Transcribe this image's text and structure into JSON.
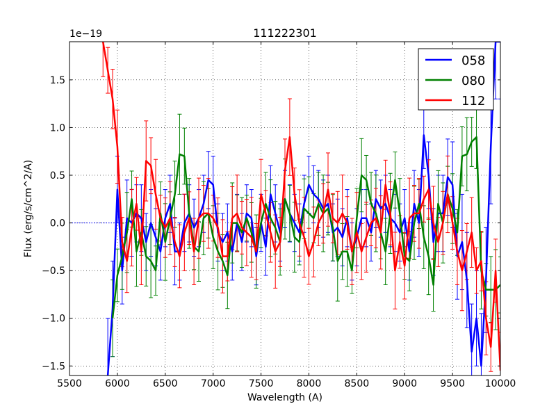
{
  "chart_data": {
    "type": "line",
    "title": "111222301",
    "xlabel": "Wavelength (A)",
    "ylabel": "Flux (erg/s/cm^2/A)",
    "y_offset_label": "1e−19",
    "xlim": [
      5500,
      10000
    ],
    "ylim": [
      -1.6,
      1.9
    ],
    "xticks": [
      5500,
      6000,
      6500,
      7000,
      7500,
      8000,
      8500,
      9000,
      9500,
      10000
    ],
    "xtick_labels": [
      "5500",
      "6000",
      "6500",
      "7000",
      "7500",
      "8000",
      "8500",
      "9000",
      "9500",
      "10000"
    ],
    "yticks": [
      -1.5,
      -1.0,
      -0.5,
      0.0,
      0.5,
      1.0,
      1.5
    ],
    "ytick_labels": [
      "−1.5",
      "−1.0",
      "−0.5",
      "0.0",
      "0.5",
      "1.0",
      "1.5"
    ],
    "grid": true,
    "legend_position": "top-right",
    "baseline": {
      "x_from": 5500,
      "x_to": 5980,
      "y": 0.0,
      "color": "#0000ff",
      "style": "dotted"
    },
    "series": [
      {
        "name": "058",
        "color": "#0000ff",
        "x": [
          5900,
          5950,
          6000,
          6050,
          6100,
          6150,
          6200,
          6250,
          6300,
          6350,
          6400,
          6450,
          6500,
          6550,
          6600,
          6650,
          6700,
          6750,
          6800,
          6850,
          6900,
          6950,
          7000,
          7050,
          7100,
          7150,
          7200,
          7250,
          7300,
          7350,
          7400,
          7450,
          7500,
          7550,
          7600,
          7650,
          7700,
          7750,
          7800,
          7850,
          7900,
          7950,
          8000,
          8050,
          8100,
          8150,
          8200,
          8250,
          8300,
          8350,
          8400,
          8450,
          8500,
          8550,
          8600,
          8650,
          8700,
          8750,
          8800,
          8850,
          8900,
          8950,
          9000,
          9050,
          9100,
          9150,
          9200,
          9250,
          9300,
          9350,
          9400,
          9450,
          9500,
          9550,
          9600,
          9650,
          9700,
          9750,
          9800,
          9850,
          9900,
          9950,
          10000
        ],
        "y": [
          -1.6,
          -0.9,
          0.35,
          -0.5,
          0.05,
          0.0,
          0.1,
          0.05,
          -0.2,
          0.0,
          -0.15,
          -0.3,
          0.05,
          0.2,
          -0.3,
          -0.3,
          0.0,
          0.1,
          -0.05,
          0.05,
          0.2,
          0.45,
          0.4,
          -0.1,
          -0.2,
          -0.1,
          -0.3,
          0.0,
          -0.2,
          0.1,
          0.05,
          -0.35,
          0.0,
          -0.25,
          0.3,
          0.1,
          -0.1,
          0.25,
          0.1,
          0.0,
          -0.1,
          0.2,
          0.4,
          0.3,
          0.25,
          0.15,
          0.2,
          -0.1,
          -0.05,
          -0.15,
          0.05,
          -0.3,
          -0.15,
          0.05,
          0.05,
          -0.1,
          0.25,
          0.15,
          0.2,
          0.05,
          0.0,
          -0.1,
          0.05,
          -0.3,
          0.2,
          0.0,
          0.92,
          0.5,
          -0.2,
          0.1,
          0.1,
          0.48,
          0.4,
          -0.35,
          -0.2,
          -0.6,
          -1.35,
          -1.0,
          -1.5,
          -0.6,
          0.8,
          1.9,
          1.9
        ],
        "err": [
          0.6,
          0.5,
          0.35,
          0.35,
          0.4,
          0.35,
          0.3,
          0.35,
          0.3,
          0.35,
          0.3,
          0.3,
          0.3,
          0.3,
          0.35,
          0.3,
          0.3,
          0.3,
          0.3,
          0.3,
          0.3,
          0.3,
          0.3,
          0.3,
          0.3,
          0.3,
          0.3,
          0.3,
          0.3,
          0.3,
          0.3,
          0.3,
          0.3,
          0.3,
          0.3,
          0.3,
          0.3,
          0.3,
          0.3,
          0.3,
          0.3,
          0.3,
          0.3,
          0.3,
          0.3,
          0.3,
          0.3,
          0.3,
          0.3,
          0.3,
          0.3,
          0.3,
          0.3,
          0.3,
          0.3,
          0.3,
          0.3,
          0.3,
          0.3,
          0.3,
          0.3,
          0.3,
          0.3,
          0.3,
          0.35,
          0.35,
          0.35,
          0.35,
          0.35,
          0.4,
          0.4,
          0.4,
          0.45,
          0.45,
          0.5,
          0.5,
          0.5,
          0.5,
          0.55,
          0.55,
          0.6,
          0.6,
          0.6
        ]
      },
      {
        "name": "080",
        "color": "#008000",
        "x": [
          5950,
          6000,
          6050,
          6100,
          6150,
          6200,
          6250,
          6300,
          6350,
          6400,
          6450,
          6500,
          6550,
          6600,
          6650,
          6700,
          6750,
          6800,
          6850,
          6900,
          6950,
          7000,
          7050,
          7100,
          7150,
          7200,
          7250,
          7300,
          7350,
          7400,
          7450,
          7500,
          7550,
          7600,
          7650,
          7700,
          7750,
          7800,
          7850,
          7900,
          7950,
          8000,
          8050,
          8100,
          8150,
          8200,
          8250,
          8300,
          8350,
          8400,
          8450,
          8500,
          8550,
          8600,
          8650,
          8700,
          8750,
          8800,
          8850,
          8900,
          8950,
          9000,
          9050,
          9100,
          9150,
          9200,
          9250,
          9300,
          9350,
          9400,
          9450,
          9500,
          9550,
          9600,
          9650,
          9700,
          9750,
          9800,
          9850,
          9900,
          9950,
          10000
        ],
        "y": [
          -1.0,
          -0.55,
          -0.35,
          -0.1,
          0.25,
          -0.3,
          -0.1,
          -0.35,
          -0.4,
          -0.5,
          0.1,
          -0.2,
          0.05,
          0.3,
          0.72,
          0.7,
          0.1,
          -0.25,
          -0.3,
          0.05,
          0.1,
          -0.15,
          -0.3,
          -0.4,
          -0.55,
          0.0,
          0.0,
          -0.1,
          0.05,
          -0.1,
          -0.3,
          0.0,
          0.2,
          0.05,
          -0.05,
          -0.2,
          0.25,
          0.1,
          -0.15,
          -0.2,
          0.15,
          0.1,
          0.05,
          0.2,
          0.1,
          0.15,
          -0.05,
          -0.4,
          -0.3,
          -0.3,
          -0.5,
          0.05,
          0.5,
          0.45,
          0.2,
          0.1,
          -0.1,
          -0.3,
          0.1,
          0.45,
          0.1,
          -0.35,
          -0.4,
          0.0,
          0.2,
          -0.15,
          -0.35,
          -0.65,
          0.2,
          0.0,
          0.3,
          0.15,
          -0.1,
          0.7,
          0.72,
          0.85,
          0.9,
          -0.5,
          -0.7,
          -0.7,
          -0.7,
          -0.65
        ]
      },
      {
        "name": "112",
        "color": "#ff0000",
        "x": [
          5850,
          5900,
          5950,
          6000,
          6050,
          6100,
          6150,
          6200,
          6250,
          6300,
          6350,
          6400,
          6450,
          6500,
          6550,
          6600,
          6650,
          6700,
          6750,
          6800,
          6850,
          6900,
          6950,
          7000,
          7050,
          7100,
          7150,
          7200,
          7250,
          7300,
          7350,
          7400,
          7450,
          7500,
          7550,
          7600,
          7650,
          7700,
          7750,
          7800,
          7850,
          7900,
          7950,
          8000,
          8050,
          8100,
          8150,
          8200,
          8250,
          8300,
          8350,
          8400,
          8450,
          8500,
          8550,
          8600,
          8650,
          8700,
          8750,
          8800,
          8850,
          8900,
          8950,
          9000,
          9050,
          9100,
          9150,
          9200,
          9250,
          9300,
          9350,
          9400,
          9450,
          9500,
          9550,
          9600,
          9650,
          9700,
          9750,
          9800,
          9850,
          9900,
          9950,
          10000
        ],
        "y": [
          1.9,
          1.6,
          1.3,
          0.8,
          -0.2,
          -0.4,
          -0.05,
          0.2,
          -0.3,
          0.65,
          0.6,
          0.3,
          0.05,
          -0.05,
          0.05,
          -0.2,
          -0.35,
          -0.1,
          0.05,
          -0.3,
          0.05,
          0.1,
          0.1,
          0.05,
          -0.05,
          -0.35,
          -0.35,
          0.05,
          0.1,
          -0.05,
          -0.1,
          -0.15,
          -0.3,
          0.3,
          0.1,
          -0.1,
          -0.3,
          -0.2,
          0.55,
          0.9,
          0.3,
          0.0,
          -0.15,
          -0.35,
          -0.2,
          0.0,
          0.1,
          0.35,
          0.05,
          0.0,
          0.1,
          0.0,
          -0.3,
          -0.1,
          -0.3,
          -0.15,
          0.0,
          0.05,
          -0.1,
          0.4,
          0.1,
          -0.5,
          -0.2,
          -0.45,
          0.05,
          0.1,
          0.1,
          0.25,
          0.35,
          0.0,
          -0.2,
          0.0,
          0.3,
          0.0,
          -0.3,
          -0.5,
          -0.3,
          -0.1,
          -0.5,
          -0.4,
          -1.0,
          -1.3,
          -0.5,
          -1.55
        ]
      }
    ]
  }
}
